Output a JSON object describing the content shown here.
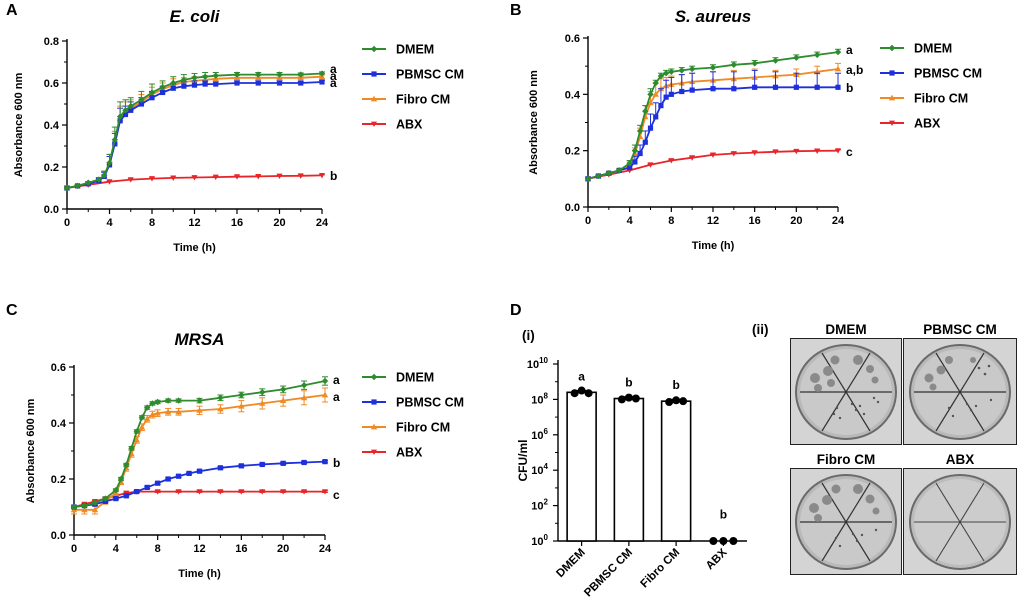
{
  "panel_letters": {
    "a": "A",
    "b": "B",
    "c": "C",
    "d": "D"
  },
  "sub_labels": {
    "i": "(i)",
    "ii": "(ii)"
  },
  "colors": {
    "DMEM": "#2e8b2e",
    "PBMSC CM": "#1e2fdc",
    "Fibro CM": "#f08a24",
    "ABX": "#e8252a"
  },
  "chart_data": [
    {
      "id": "A",
      "type": "line",
      "title": "E. coli",
      "xlabel": "Time (h)",
      "ylabel": "Absorbance 600 nm",
      "xlim": [
        0,
        24
      ],
      "ylim": [
        0,
        0.8
      ],
      "xticks": [
        0,
        4,
        8,
        12,
        16,
        20,
        24
      ],
      "yticks": [
        0.0,
        0.2,
        0.4,
        0.6,
        0.8
      ],
      "ytick_labels": [
        "0.0",
        "0.2",
        "0.4",
        "0.6",
        "0.8"
      ],
      "error_bars": "up",
      "series": [
        {
          "name": "DMEM",
          "sig": "a",
          "x": [
            0,
            1,
            2,
            3,
            3.5,
            4,
            4.5,
            5,
            5.5,
            6,
            7,
            8,
            9,
            10,
            11,
            12,
            13,
            14,
            16,
            18,
            20,
            22,
            24
          ],
          "y": [
            0.1,
            0.11,
            0.125,
            0.14,
            0.16,
            0.22,
            0.33,
            0.44,
            0.47,
            0.49,
            0.52,
            0.555,
            0.58,
            0.6,
            0.615,
            0.625,
            0.63,
            0.635,
            0.64,
            0.64,
            0.64,
            0.64,
            0.645
          ],
          "err": [
            0.005,
            0.005,
            0.006,
            0.01,
            0.02,
            0.04,
            0.06,
            0.07,
            0.05,
            0.04,
            0.04,
            0.04,
            0.03,
            0.03,
            0.025,
            0.02,
            0.02,
            0.015,
            0.01,
            0.01,
            0.01,
            0.008,
            0.008
          ]
        },
        {
          "name": "PBMSC CM",
          "sig": "a",
          "x": [
            0,
            1,
            2,
            3,
            3.5,
            4,
            4.5,
            5,
            5.5,
            6,
            7,
            8,
            9,
            10,
            11,
            12,
            13,
            14,
            16,
            18,
            20,
            22,
            24
          ],
          "y": [
            0.1,
            0.11,
            0.12,
            0.135,
            0.155,
            0.21,
            0.31,
            0.42,
            0.45,
            0.47,
            0.5,
            0.53,
            0.555,
            0.575,
            0.585,
            0.59,
            0.595,
            0.595,
            0.6,
            0.6,
            0.6,
            0.6,
            0.605
          ],
          "err": [
            0.005,
            0.005,
            0.006,
            0.01,
            0.02,
            0.04,
            0.05,
            0.06,
            0.04,
            0.04,
            0.03,
            0.03,
            0.03,
            0.02,
            0.02,
            0.02,
            0.015,
            0.01,
            0.01,
            0.01,
            0.01,
            0.008,
            0.008
          ]
        },
        {
          "name": "Fibro CM",
          "sig": "a",
          "x": [
            0,
            1,
            2,
            3,
            3.5,
            4,
            4.5,
            5,
            5.5,
            6,
            7,
            8,
            9,
            10,
            11,
            12,
            13,
            14,
            16,
            18,
            20,
            22,
            24
          ],
          "y": [
            0.1,
            0.11,
            0.125,
            0.14,
            0.16,
            0.22,
            0.32,
            0.43,
            0.46,
            0.48,
            0.51,
            0.545,
            0.57,
            0.59,
            0.605,
            0.61,
            0.615,
            0.62,
            0.625,
            0.625,
            0.625,
            0.625,
            0.63
          ],
          "err": [
            0.005,
            0.005,
            0.006,
            0.01,
            0.02,
            0.04,
            0.05,
            0.06,
            0.05,
            0.04,
            0.035,
            0.035,
            0.03,
            0.03,
            0.02,
            0.02,
            0.02,
            0.015,
            0.01,
            0.01,
            0.01,
            0.008,
            0.008
          ]
        },
        {
          "name": "ABX",
          "sig": "b",
          "x": [
            0,
            2,
            4,
            6,
            8,
            10,
            12,
            14,
            16,
            18,
            20,
            22,
            24
          ],
          "y": [
            0.1,
            0.115,
            0.13,
            0.14,
            0.145,
            0.148,
            0.15,
            0.152,
            0.154,
            0.155,
            0.157,
            0.158,
            0.16
          ],
          "err": [
            0.003,
            0.003,
            0.003,
            0.003,
            0.003,
            0.003,
            0.003,
            0.003,
            0.003,
            0.003,
            0.003,
            0.003,
            0.003
          ]
        }
      ]
    },
    {
      "id": "B",
      "type": "line",
      "title": "S. aureus",
      "xlabel": "Time (h)",
      "ylabel": "Absorbance 600 nm",
      "xlim": [
        0,
        24
      ],
      "ylim": [
        0,
        0.6
      ],
      "xticks": [
        0,
        4,
        8,
        12,
        16,
        20,
        24
      ],
      "yticks": [
        0.0,
        0.2,
        0.4,
        0.6
      ],
      "ytick_labels": [
        "0.0",
        "0.2",
        "0.4",
        "0.6"
      ],
      "error_bars": "up",
      "series": [
        {
          "name": "DMEM",
          "sig": "a",
          "x": [
            0,
            1,
            2,
            3,
            4,
            4.5,
            5,
            5.5,
            6,
            6.5,
            7,
            7.5,
            8,
            9,
            10,
            12,
            14,
            16,
            18,
            20,
            22,
            24
          ],
          "y": [
            0.1,
            0.11,
            0.12,
            0.13,
            0.155,
            0.2,
            0.27,
            0.34,
            0.4,
            0.44,
            0.465,
            0.475,
            0.48,
            0.485,
            0.49,
            0.495,
            0.505,
            0.51,
            0.52,
            0.53,
            0.54,
            0.55
          ],
          "err": [
            0.003,
            0.003,
            0.003,
            0.005,
            0.01,
            0.02,
            0.02,
            0.02,
            0.02,
            0.01,
            0.01,
            0.01,
            0.01,
            0.01,
            0.01,
            0.01,
            0.01,
            0.01,
            0.01,
            0.01,
            0.01,
            0.01
          ]
        },
        {
          "name": "PBMSC CM",
          "sig": "b",
          "x": [
            0,
            1,
            2,
            3,
            4,
            4.5,
            5,
            5.5,
            6,
            6.5,
            7,
            7.5,
            8,
            9,
            10,
            12,
            14,
            16,
            18,
            20,
            22,
            24
          ],
          "y": [
            0.1,
            0.11,
            0.12,
            0.13,
            0.14,
            0.16,
            0.19,
            0.23,
            0.28,
            0.32,
            0.36,
            0.39,
            0.4,
            0.41,
            0.415,
            0.42,
            0.42,
            0.425,
            0.425,
            0.425,
            0.425,
            0.425
          ],
          "err": [
            0.003,
            0.003,
            0.003,
            0.005,
            0.01,
            0.02,
            0.03,
            0.04,
            0.05,
            0.05,
            0.06,
            0.06,
            0.06,
            0.06,
            0.06,
            0.06,
            0.06,
            0.06,
            0.055,
            0.05,
            0.05,
            0.05
          ]
        },
        {
          "name": "Fibro CM",
          "sig": "a,b",
          "x": [
            0,
            1,
            2,
            3,
            4,
            4.5,
            5,
            5.5,
            6,
            6.5,
            7,
            7.5,
            8,
            9,
            10,
            12,
            14,
            16,
            18,
            20,
            22,
            24
          ],
          "y": [
            0.1,
            0.11,
            0.12,
            0.13,
            0.15,
            0.19,
            0.25,
            0.32,
            0.37,
            0.4,
            0.42,
            0.43,
            0.435,
            0.44,
            0.445,
            0.45,
            0.455,
            0.46,
            0.465,
            0.47,
            0.48,
            0.49
          ],
          "err": [
            0.003,
            0.003,
            0.003,
            0.005,
            0.01,
            0.02,
            0.03,
            0.04,
            0.04,
            0.04,
            0.035,
            0.03,
            0.03,
            0.03,
            0.03,
            0.03,
            0.03,
            0.03,
            0.02,
            0.02,
            0.02,
            0.02
          ]
        },
        {
          "name": "ABX",
          "sig": "c",
          "x": [
            0,
            2,
            4,
            6,
            8,
            10,
            12,
            14,
            16,
            18,
            20,
            22,
            24
          ],
          "y": [
            0.1,
            0.115,
            0.13,
            0.15,
            0.165,
            0.175,
            0.185,
            0.19,
            0.193,
            0.196,
            0.198,
            0.199,
            0.2
          ],
          "err": [
            0.003,
            0.003,
            0.003,
            0.003,
            0.003,
            0.003,
            0.003,
            0.003,
            0.003,
            0.003,
            0.003,
            0.003,
            0.003
          ]
        }
      ]
    },
    {
      "id": "C",
      "type": "line",
      "title": "MRSA",
      "xlabel": "Time (h)",
      "ylabel": "Absorbance 600 nm",
      "xlim": [
        0,
        24
      ],
      "ylim": [
        0,
        0.6
      ],
      "xticks": [
        0,
        4,
        8,
        12,
        16,
        20,
        24
      ],
      "yticks": [
        0.0,
        0.2,
        0.4,
        0.6
      ],
      "ytick_labels": [
        "0.0",
        "0.2",
        "0.4",
        "0.6"
      ],
      "error_bars": "both",
      "series": [
        {
          "name": "DMEM",
          "sig": "a",
          "x": [
            0,
            1,
            2,
            3,
            4,
            4.5,
            5,
            5.5,
            6,
            6.5,
            7,
            7.5,
            8,
            9,
            10,
            12,
            14,
            16,
            18,
            20,
            22,
            24
          ],
          "y": [
            0.1,
            0.105,
            0.115,
            0.13,
            0.16,
            0.2,
            0.25,
            0.31,
            0.37,
            0.42,
            0.455,
            0.47,
            0.475,
            0.48,
            0.48,
            0.48,
            0.49,
            0.5,
            0.51,
            0.52,
            0.535,
            0.55
          ],
          "err": [
            0.005,
            0.005,
            0.005,
            0.005,
            0.005,
            0.006,
            0.006,
            0.006,
            0.006,
            0.006,
            0.006,
            0.006,
            0.006,
            0.006,
            0.006,
            0.008,
            0.01,
            0.01,
            0.012,
            0.012,
            0.015,
            0.015
          ]
        },
        {
          "name": "PBMSC CM",
          "sig": "b",
          "x": [
            0,
            1,
            2,
            3,
            4,
            5,
            6,
            7,
            8,
            9,
            10,
            11,
            12,
            14,
            16,
            18,
            20,
            22,
            24
          ],
          "y": [
            0.1,
            0.105,
            0.11,
            0.12,
            0.13,
            0.14,
            0.155,
            0.17,
            0.185,
            0.2,
            0.21,
            0.22,
            0.228,
            0.24,
            0.247,
            0.252,
            0.256,
            0.259,
            0.262
          ],
          "err": [
            0.004,
            0.004,
            0.004,
            0.004,
            0.004,
            0.004,
            0.004,
            0.004,
            0.004,
            0.004,
            0.004,
            0.004,
            0.004,
            0.004,
            0.004,
            0.004,
            0.004,
            0.004,
            0.004
          ]
        },
        {
          "name": "Fibro CM",
          "sig": "a",
          "x": [
            0,
            1,
            2,
            3,
            4,
            4.5,
            5,
            5.5,
            6,
            6.5,
            7,
            7.5,
            8,
            9,
            10,
            12,
            14,
            16,
            18,
            20,
            22,
            24
          ],
          "y": [
            0.09,
            0.09,
            0.09,
            0.12,
            0.15,
            0.19,
            0.24,
            0.29,
            0.34,
            0.385,
            0.415,
            0.43,
            0.435,
            0.44,
            0.44,
            0.445,
            0.45,
            0.46,
            0.47,
            0.48,
            0.49,
            0.5
          ],
          "err": [
            0.015,
            0.015,
            0.015,
            0.01,
            0.01,
            0.01,
            0.012,
            0.012,
            0.012,
            0.012,
            0.012,
            0.012,
            0.012,
            0.012,
            0.012,
            0.015,
            0.015,
            0.02,
            0.02,
            0.02,
            0.025,
            0.025
          ]
        },
        {
          "name": "ABX",
          "sig": "c",
          "x": [
            0,
            1,
            2,
            3,
            4,
            5,
            6,
            8,
            10,
            12,
            14,
            16,
            18,
            20,
            22,
            24
          ],
          "y": [
            0.1,
            0.11,
            0.12,
            0.13,
            0.14,
            0.15,
            0.155,
            0.155,
            0.155,
            0.155,
            0.155,
            0.155,
            0.155,
            0.155,
            0.155,
            0.155
          ],
          "err": [
            0.003,
            0.003,
            0.003,
            0.003,
            0.003,
            0.003,
            0.003,
            0.003,
            0.003,
            0.003,
            0.003,
            0.003,
            0.003,
            0.003,
            0.003,
            0.003
          ]
        }
      ]
    },
    {
      "id": "D-i",
      "type": "bar",
      "title": "",
      "xlabel": "",
      "ylabel": "CFU/ml",
      "yscale": "log",
      "ylim_log10": [
        0,
        10
      ],
      "ytick_exponents": [
        0,
        2,
        4,
        6,
        8,
        10
      ],
      "categories": [
        "DMEM",
        "PBMSC CM",
        "Fibro CM",
        "ABX"
      ],
      "values_log10": [
        8.4,
        8.05,
        7.9,
        0
      ],
      "points_log10": [
        [
          8.35,
          8.5,
          8.35
        ],
        [
          8.0,
          8.1,
          8.05
        ],
        [
          7.85,
          7.95,
          7.9
        ],
        [
          0,
          0,
          0
        ]
      ],
      "sig": [
        "a",
        "b",
        "b",
        "b"
      ]
    }
  ],
  "plates": {
    "labels": [
      "DMEM",
      "PBMSC CM",
      "Fibro CM",
      "ABX"
    ]
  }
}
